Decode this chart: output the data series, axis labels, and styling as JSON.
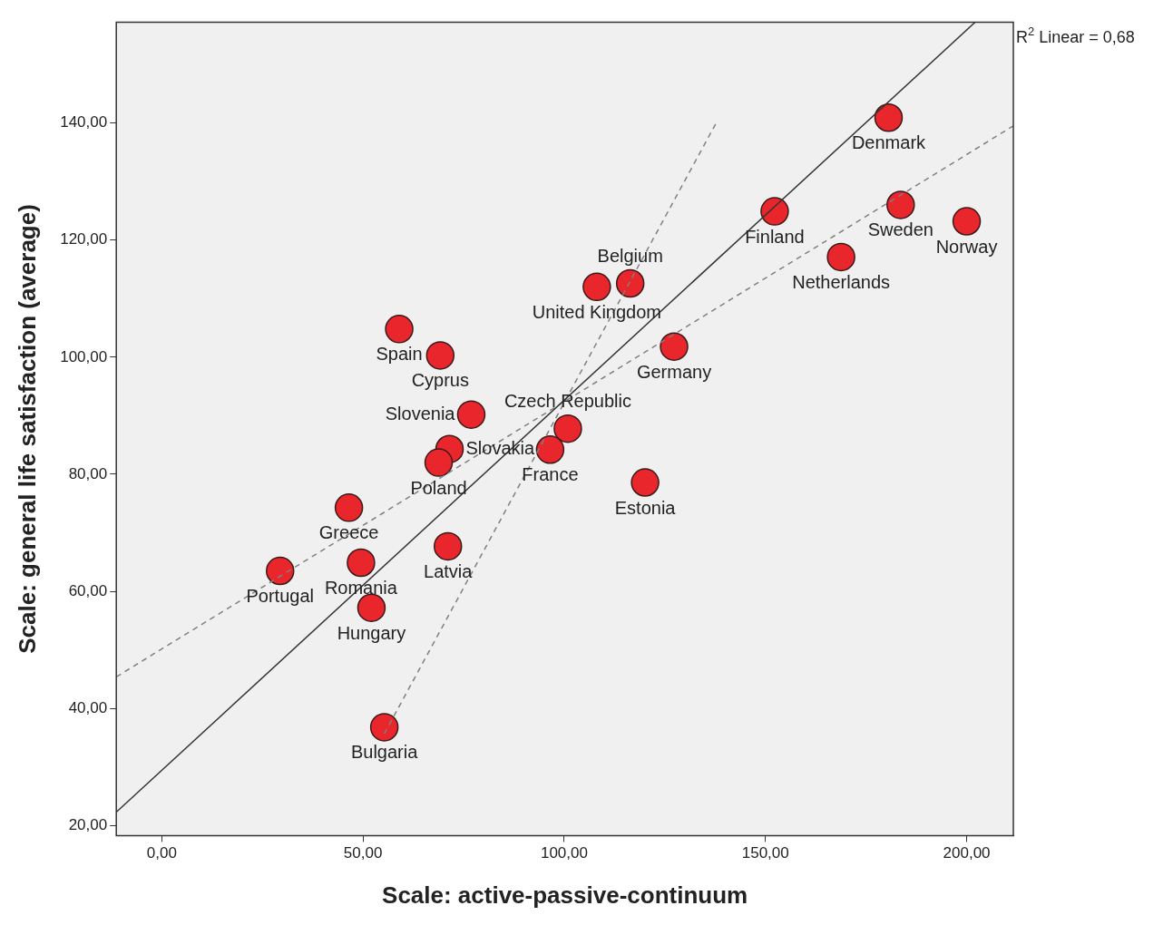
{
  "chart_data": {
    "type": "scatter",
    "xlabel": "Scale: active-passive-continuum",
    "ylabel": "Scale: general life satisfaction (average)",
    "xlim": [
      -11.3,
      211.6
    ],
    "ylim": [
      18.3,
      157.2
    ],
    "xticks": [
      {
        "value": 0,
        "label": "0,00"
      },
      {
        "value": 50,
        "label": "50,00"
      },
      {
        "value": 100,
        "label": "100,00"
      },
      {
        "value": 150,
        "label": "150,00"
      },
      {
        "value": 200,
        "label": "200,00"
      }
    ],
    "yticks": [
      {
        "value": 20,
        "label": "20,00"
      },
      {
        "value": 40,
        "label": "40,00"
      },
      {
        "value": 60,
        "label": "60,00"
      },
      {
        "value": 80,
        "label": "80,00"
      },
      {
        "value": 100,
        "label": "100,00"
      },
      {
        "value": 120,
        "label": "120,00"
      },
      {
        "value": 140,
        "label": "140,00"
      }
    ],
    "legend": false,
    "series": [
      {
        "color": "#e8262b",
        "marker": "circle",
        "x": [
          180.6,
          200,
          183.6,
          152.3,
          168.8,
          116.4,
          108.1,
          127.3,
          59,
          69.2,
          76.9,
          100.9,
          96.5,
          71.5,
          68.8,
          120.1,
          46.5,
          49.5,
          71.1,
          29.4,
          52.1,
          55.3
        ],
        "values": [
          140.9,
          123.2,
          126,
          124.9,
          117.1,
          112.6,
          112,
          101.8,
          104.8,
          100.3,
          90.2,
          87.8,
          84.2,
          84.3,
          82,
          78.6,
          74.3,
          64.9,
          67.7,
          63.5,
          57.2,
          36.8
        ]
      },
      {
        "type": "line",
        "color": "#333333",
        "marker": "none",
        "line_style": "solid",
        "x": [
          -11.3,
          202.1
        ],
        "values": [
          22.3,
          157.2
        ]
      },
      {
        "type": "line",
        "color": "#808080",
        "marker": "none",
        "line_style": "dashed",
        "x": [
          -11.3,
          211.6
        ],
        "values": [
          45.4,
          139.5
        ]
      },
      {
        "type": "line",
        "color": "#808080",
        "marker": "none",
        "line_style": "dashed",
        "x": [
          55.3,
          138
        ],
        "values": [
          35.7,
          140.3
        ]
      }
    ],
    "annotations": [
      "R$^{2}$ Linear = 0,68",
      {
        "text": "Denmark",
        "x": 180.6,
        "y": 140.9
      },
      {
        "text": "Norway",
        "x": 200,
        "y": 123.2
      },
      {
        "text": "Sweden",
        "x": 183.6,
        "y": 126
      },
      {
        "text": "Finland",
        "x": 152.3,
        "y": 124.9
      },
      {
        "text": "Netherlands",
        "x": 168.8,
        "y": 117.1
      },
      {
        "text": "Belgium",
        "x": 116.4,
        "y": 112.6
      },
      {
        "text": "United Kingdom",
        "x": 108.1,
        "y": 112
      },
      {
        "text": "Germany",
        "x": 127.3,
        "y": 101.8
      },
      {
        "text": "Spain",
        "x": 59,
        "y": 104.8
      },
      {
        "text": "Cyprus",
        "x": 69.2,
        "y": 100.3
      },
      {
        "text": "Slovenia",
        "x": 76.9,
        "y": 90.2
      },
      {
        "text": "Czech Republic",
        "x": 100.9,
        "y": 87.8
      },
      {
        "text": "France",
        "x": 96.5,
        "y": 84.2
      },
      {
        "text": "Slovakia",
        "x": 71.5,
        "y": 84.3
      },
      {
        "text": "Poland",
        "x": 68.8,
        "y": 82
      },
      {
        "text": "Estonia",
        "x": 120.1,
        "y": 78.6
      },
      {
        "text": "Greece",
        "x": 46.5,
        "y": 74.3
      },
      {
        "text": "Romania",
        "x": 49.5,
        "y": 64.9
      },
      {
        "text": "Latvia",
        "x": 71.1,
        "y": 67.7
      },
      {
        "text": "Portugal",
        "x": 29.4,
        "y": 63.5
      },
      {
        "text": "Hungary",
        "x": 52.1,
        "y": 57.2
      },
      {
        "text": "Bulgaria",
        "x": 55.3,
        "y": 36.8
      }
    ]
  }
}
